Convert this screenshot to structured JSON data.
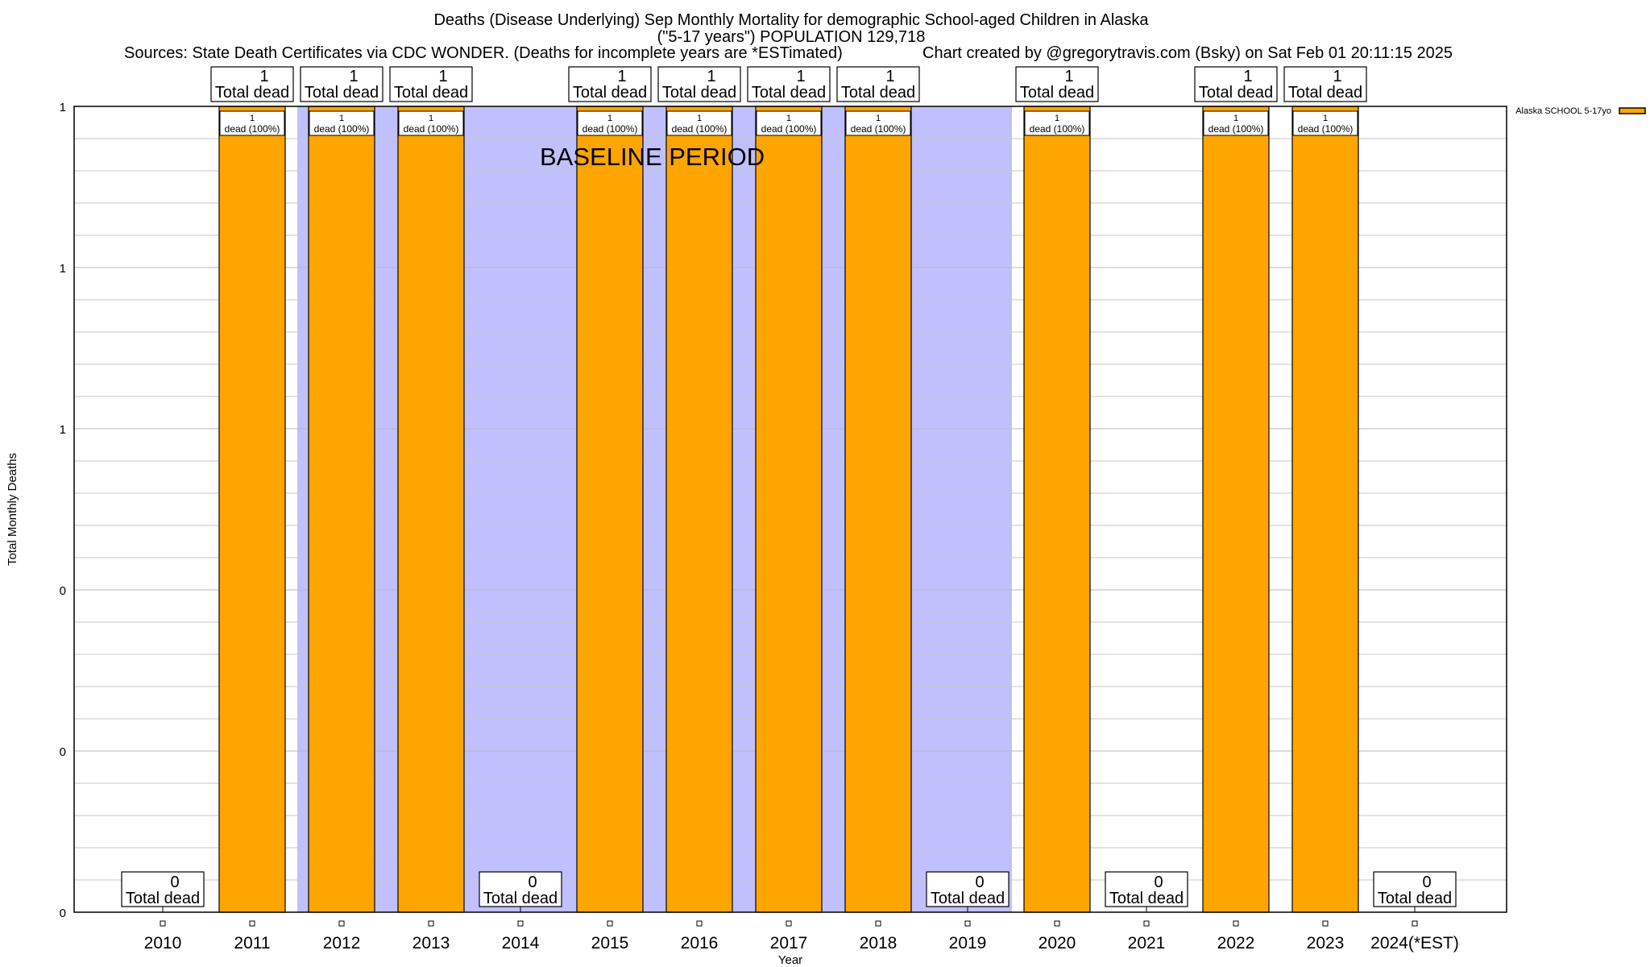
{
  "chart_data": {
    "type": "bar",
    "title": "Deaths (Disease Underlying) Sep Monthly Mortality for demographic School-aged Children in Alaska",
    "subtitle": "(\"5-17 years\") POPULATION 129,718",
    "sources": "Sources: State Death Certificates via CDC WONDER. (Deaths for incomplete years are *ESTimated)",
    "credit": "Chart created by @gregorytravis.com (Bsky) on Sat Feb 01 20:11:15 2025",
    "xlabel": "Year",
    "ylabel": "Total Monthly Deaths",
    "ylim": [
      0,
      1
    ],
    "y_ticks": [
      0,
      0.2,
      0.4,
      0.6,
      0.8,
      1
    ],
    "y_tick_labels": [
      "0",
      "0",
      "0",
      "1",
      "1",
      "1"
    ],
    "grid": true,
    "legend_position": "top-right",
    "categories": [
      "2010",
      "2011",
      "2012",
      "2013",
      "2014",
      "2015",
      "2016",
      "2017",
      "2018",
      "2019",
      "2020",
      "2021",
      "2022",
      "2023",
      "2024(*EST)"
    ],
    "series": [
      {
        "name": "Alaska SCHOOL 5-17yo",
        "color": "#ffa500",
        "values": [
          0,
          1,
          1,
          1,
          0,
          1,
          1,
          1,
          1,
          0,
          1,
          0,
          1,
          1,
          0
        ]
      }
    ],
    "total_label_suffix": "Total dead",
    "bar_label_suffix": "dead (100%)",
    "annotation": {
      "text": "BASELINE PERIOD",
      "start": "2012",
      "end": "2019",
      "color": "#c0c0ff"
    }
  }
}
